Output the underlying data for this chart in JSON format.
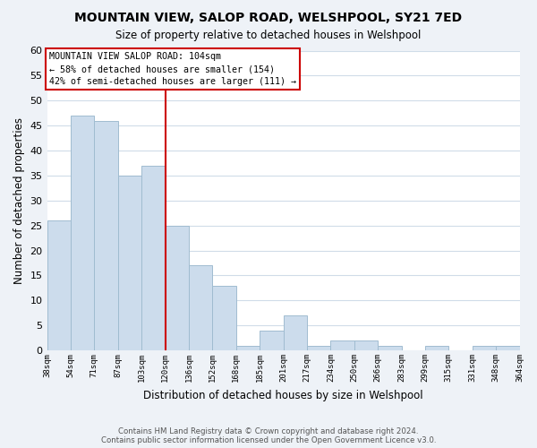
{
  "title": "MOUNTAIN VIEW, SALOP ROAD, WELSHPOOL, SY21 7ED",
  "subtitle": "Size of property relative to detached houses in Welshpool",
  "xlabel": "Distribution of detached houses by size in Welshpool",
  "ylabel": "Number of detached properties",
  "bar_edges": [
    38,
    54,
    71,
    87,
    103,
    120,
    136,
    152,
    168,
    185,
    201,
    217,
    234,
    250,
    266,
    283,
    299,
    315,
    331,
    348,
    364
  ],
  "bar_heights": [
    26,
    47,
    46,
    35,
    37,
    25,
    17,
    13,
    1,
    4,
    7,
    1,
    2,
    2,
    1,
    0,
    1,
    0,
    1,
    1
  ],
  "bar_color": "#ccdcec",
  "bar_edgecolor": "#a0bcd0",
  "property_size_idx": 4,
  "ylim": [
    0,
    60
  ],
  "yticks": [
    0,
    5,
    10,
    15,
    20,
    25,
    30,
    35,
    40,
    45,
    50,
    55,
    60
  ],
  "annotation_box_text": "MOUNTAIN VIEW SALOP ROAD: 104sqm\n← 58% of detached houses are smaller (154)\n42% of semi-detached houses are larger (111) →",
  "footnote1": "Contains HM Land Registry data © Crown copyright and database right 2024.",
  "footnote2": "Contains public sector information licensed under the Open Government Licence v3.0.",
  "background_color": "#eef2f7",
  "plot_background": "#ffffff",
  "grid_color": "#d0dce8",
  "vline_color": "#cc0000",
  "box_edge_color": "#cc0000",
  "tick_labels": [
    "38sqm",
    "54sqm",
    "71sqm",
    "87sqm",
    "103sqm",
    "120sqm",
    "136sqm",
    "152sqm",
    "168sqm",
    "185sqm",
    "201sqm",
    "217sqm",
    "234sqm",
    "250sqm",
    "266sqm",
    "283sqm",
    "299sqm",
    "315sqm",
    "331sqm",
    "348sqm",
    "364sqm"
  ]
}
